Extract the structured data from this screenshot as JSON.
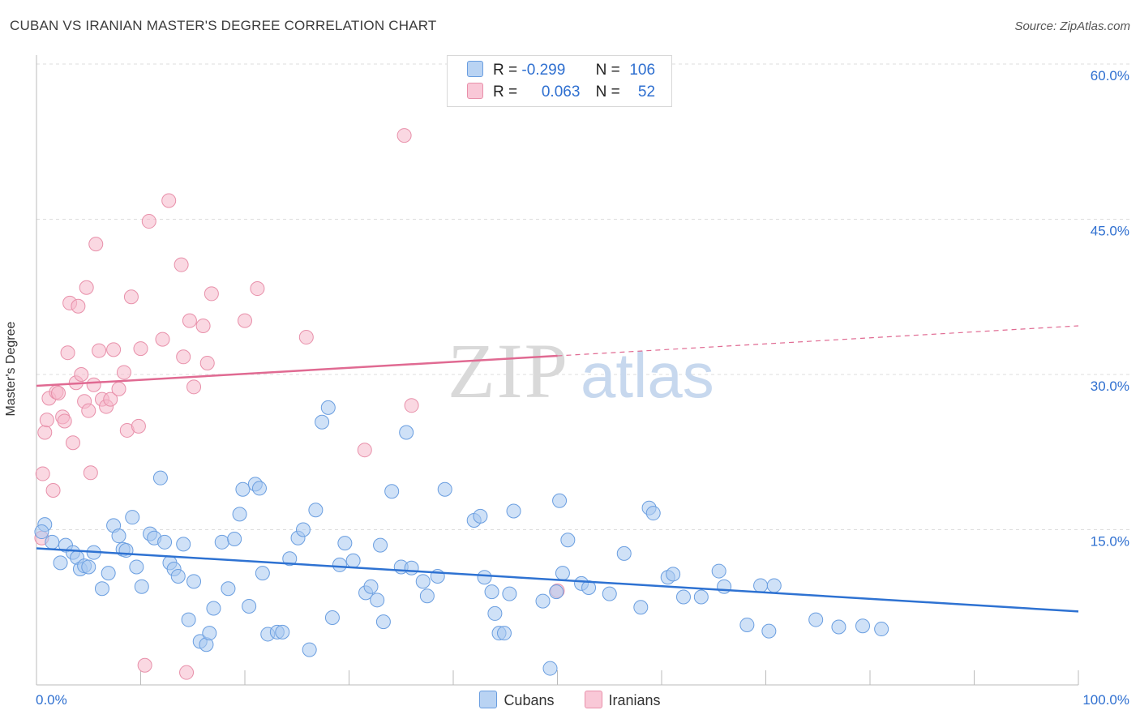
{
  "title": "CUBAN VS IRANIAN MASTER'S DEGREE CORRELATION CHART",
  "source": "Source: ZipAtlas.com",
  "watermark": {
    "zip": "ZIP",
    "atlas": "atlas"
  },
  "colors": {
    "cubans_fill": "#a8c8f0",
    "cubans_stroke": "#6a9ee0",
    "cubans_line": "#2e72d2",
    "iranians_fill": "#f6b8cb",
    "iranians_stroke": "#e890aa",
    "iranians_line": "#e06a92",
    "tick_label": "#2e6fd0",
    "grid": "#dddddd"
  },
  "legend_top": {
    "rows": [
      {
        "r_label": "R =",
        "r_value": "-0.299",
        "n_label": "N =",
        "n_value": "106"
      },
      {
        "r_label": "R =",
        "r_value": "0.063",
        "n_label": "N =",
        "n_value": "52"
      }
    ]
  },
  "legend_bottom": {
    "cubans": "Cubans",
    "iranians": "Iranians"
  },
  "chart_data": {
    "type": "scatter",
    "title": "CUBAN VS IRANIAN MASTER'S DEGREE CORRELATION CHART",
    "xlabel": "",
    "ylabel": "Master's Degree",
    "xlim": [
      0,
      100
    ],
    "ylim": [
      0,
      62
    ],
    "x_tick_labels": [
      {
        "value": 0,
        "label": "0.0%"
      },
      {
        "value": 100,
        "label": "100.0%"
      }
    ],
    "y_ticks": [
      {
        "value": 15,
        "label": "15.0%"
      },
      {
        "value": 30,
        "label": "30.0%"
      },
      {
        "value": 45,
        "label": "45.0%"
      },
      {
        "value": 60,
        "label": "60.0%"
      }
    ],
    "grid": true,
    "legend_position": "top-center",
    "series": [
      {
        "name": "Cubans",
        "stats": {
          "R": -0.299,
          "N": 106
        },
        "trend": {
          "x": [
            0,
            100
          ],
          "y": [
            13.2,
            7.1
          ]
        },
        "points": [
          [
            0.8,
            15.5
          ],
          [
            0.5,
            14.8
          ],
          [
            1.5,
            13.8
          ],
          [
            2.3,
            11.8
          ],
          [
            2.8,
            13.5
          ],
          [
            3.5,
            12.8
          ],
          [
            3.9,
            12.3
          ],
          [
            4.2,
            11.2
          ],
          [
            4.6,
            11.5
          ],
          [
            5.0,
            11.4
          ],
          [
            5.5,
            12.8
          ],
          [
            6.3,
            9.3
          ],
          [
            6.9,
            10.8
          ],
          [
            7.4,
            15.4
          ],
          [
            7.9,
            14.4
          ],
          [
            8.3,
            13.1
          ],
          [
            8.6,
            13.0
          ],
          [
            9.2,
            16.2
          ],
          [
            9.6,
            11.4
          ],
          [
            10.1,
            9.5
          ],
          [
            10.9,
            14.6
          ],
          [
            11.3,
            14.2
          ],
          [
            11.9,
            20.0
          ],
          [
            12.3,
            13.8
          ],
          [
            12.8,
            11.8
          ],
          [
            13.2,
            11.2
          ],
          [
            13.6,
            10.5
          ],
          [
            14.1,
            13.6
          ],
          [
            14.6,
            6.3
          ],
          [
            15.1,
            10.0
          ],
          [
            15.7,
            4.2
          ],
          [
            16.3,
            3.9
          ],
          [
            16.6,
            5.0
          ],
          [
            17.0,
            7.4
          ],
          [
            17.8,
            13.8
          ],
          [
            18.4,
            9.3
          ],
          [
            19.0,
            14.1
          ],
          [
            19.5,
            16.5
          ],
          [
            19.8,
            18.9
          ],
          [
            20.4,
            7.6
          ],
          [
            21.0,
            19.4
          ],
          [
            21.4,
            19.0
          ],
          [
            21.7,
            10.8
          ],
          [
            22.2,
            4.9
          ],
          [
            23.1,
            5.1
          ],
          [
            23.6,
            5.1
          ],
          [
            24.3,
            12.2
          ],
          [
            25.1,
            14.2
          ],
          [
            25.6,
            15.0
          ],
          [
            26.2,
            3.4
          ],
          [
            26.8,
            16.9
          ],
          [
            27.4,
            25.4
          ],
          [
            28.0,
            26.8
          ],
          [
            28.4,
            6.5
          ],
          [
            29.1,
            11.6
          ],
          [
            29.6,
            13.7
          ],
          [
            30.4,
            12.0
          ],
          [
            31.6,
            8.9
          ],
          [
            32.1,
            9.5
          ],
          [
            32.7,
            8.2
          ],
          [
            33.0,
            13.5
          ],
          [
            33.3,
            6.1
          ],
          [
            34.1,
            18.7
          ],
          [
            35.0,
            11.4
          ],
          [
            35.5,
            24.4
          ],
          [
            36.0,
            11.3
          ],
          [
            37.1,
            10.0
          ],
          [
            37.5,
            8.6
          ],
          [
            38.5,
            10.5
          ],
          [
            39.2,
            18.9
          ],
          [
            42.0,
            15.9
          ],
          [
            42.6,
            16.3
          ],
          [
            43.0,
            10.4
          ],
          [
            43.7,
            9.0
          ],
          [
            44.0,
            6.9
          ],
          [
            44.4,
            5.0
          ],
          [
            44.9,
            5.0
          ],
          [
            45.4,
            8.8
          ],
          [
            45.8,
            16.8
          ],
          [
            48.6,
            8.1
          ],
          [
            49.3,
            1.6
          ],
          [
            49.9,
            9.0
          ],
          [
            50.5,
            10.8
          ],
          [
            51.0,
            14.0
          ],
          [
            52.3,
            9.8
          ],
          [
            53.0,
            9.4
          ],
          [
            55.0,
            8.8
          ],
          [
            56.4,
            12.7
          ],
          [
            58.0,
            7.5
          ],
          [
            58.8,
            17.1
          ],
          [
            59.2,
            16.6
          ],
          [
            60.6,
            10.4
          ],
          [
            61.1,
            10.7
          ],
          [
            62.1,
            8.5
          ],
          [
            63.8,
            8.5
          ],
          [
            65.5,
            11.0
          ],
          [
            66.0,
            9.5
          ],
          [
            68.2,
            5.8
          ],
          [
            69.5,
            9.6
          ],
          [
            70.3,
            5.2
          ],
          [
            70.8,
            9.6
          ],
          [
            74.8,
            6.3
          ],
          [
            77.0,
            5.6
          ],
          [
            79.3,
            5.7
          ],
          [
            81.1,
            5.4
          ],
          [
            50.2,
            17.8
          ]
        ]
      },
      {
        "name": "Iranians",
        "stats": {
          "R": 0.063,
          "N": 52
        },
        "trend": {
          "x": [
            0,
            100
          ],
          "y": [
            28.9,
            34.7
          ],
          "solid_until": 50
        },
        "points": [
          [
            0.5,
            14.2
          ],
          [
            0.6,
            20.4
          ],
          [
            0.8,
            24.4
          ],
          [
            1.0,
            25.6
          ],
          [
            1.2,
            27.7
          ],
          [
            1.6,
            18.8
          ],
          [
            1.9,
            28.3
          ],
          [
            2.1,
            28.2
          ],
          [
            2.5,
            25.9
          ],
          [
            2.7,
            25.5
          ],
          [
            3.0,
            32.1
          ],
          [
            3.2,
            36.9
          ],
          [
            3.5,
            23.4
          ],
          [
            3.8,
            29.2
          ],
          [
            4.0,
            36.6
          ],
          [
            4.3,
            30.0
          ],
          [
            4.6,
            27.4
          ],
          [
            4.8,
            38.4
          ],
          [
            5.0,
            26.5
          ],
          [
            5.2,
            20.5
          ],
          [
            5.5,
            29.0
          ],
          [
            5.7,
            42.6
          ],
          [
            6.0,
            32.3
          ],
          [
            6.3,
            27.6
          ],
          [
            6.7,
            26.9
          ],
          [
            7.1,
            27.6
          ],
          [
            7.4,
            32.4
          ],
          [
            7.9,
            28.6
          ],
          [
            8.4,
            30.2
          ],
          [
            8.7,
            24.6
          ],
          [
            9.1,
            37.5
          ],
          [
            9.8,
            25.0
          ],
          [
            10.0,
            32.5
          ],
          [
            10.4,
            1.9
          ],
          [
            10.8,
            44.8
          ],
          [
            12.1,
            33.4
          ],
          [
            12.7,
            46.8
          ],
          [
            13.9,
            40.6
          ],
          [
            14.1,
            31.7
          ],
          [
            14.4,
            1.2
          ],
          [
            14.7,
            35.2
          ],
          [
            15.1,
            28.8
          ],
          [
            16.0,
            34.7
          ],
          [
            16.4,
            31.1
          ],
          [
            16.8,
            37.8
          ],
          [
            20.0,
            35.2
          ],
          [
            21.2,
            38.3
          ],
          [
            25.9,
            33.6
          ],
          [
            31.5,
            22.7
          ],
          [
            35.3,
            53.1
          ],
          [
            36.0,
            27.0
          ],
          [
            50.0,
            9.1
          ]
        ]
      }
    ]
  }
}
